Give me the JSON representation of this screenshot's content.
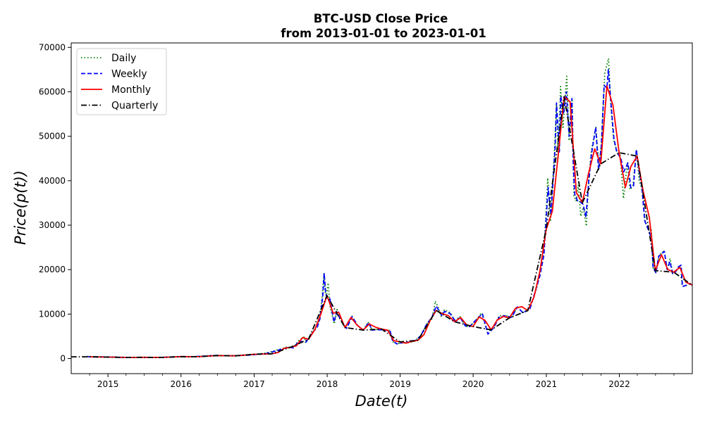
{
  "chart_data": {
    "type": "line",
    "title_line1": "BTC-USD Close Price",
    "title_line2": "from 2013-01-01 to 2023-01-01",
    "xlabel": "Date(t)",
    "ylabel": "Price(p(t))",
    "x_axis": {
      "type": "date",
      "xlim": [
        "2014-07-01",
        "2023-01-01"
      ],
      "ticks": [
        {
          "date": "2015-01-01",
          "label": "2015"
        },
        {
          "date": "2016-01-01",
          "label": "2016"
        },
        {
          "date": "2017-01-01",
          "label": "2017"
        },
        {
          "date": "2018-01-01",
          "label": "2018"
        },
        {
          "date": "2019-01-01",
          "label": "2019"
        },
        {
          "date": "2020-01-01",
          "label": "2020"
        },
        {
          "date": "2021-01-01",
          "label": "2021"
        },
        {
          "date": "2022-01-01",
          "label": "2022"
        }
      ]
    },
    "y_axis": {
      "ylim": [
        -3400,
        71000
      ],
      "ticks": [
        0,
        10000,
        20000,
        30000,
        40000,
        50000,
        60000,
        70000
      ],
      "tick_labels": [
        "0",
        "10000",
        "20000",
        "30000",
        "40000",
        "50000",
        "60000",
        "70000"
      ]
    },
    "grid": false,
    "legend_position": "top-left",
    "series": [
      {
        "name": "Daily",
        "color": "#008000",
        "dash": "dotted",
        "x": [
          "2014-09-17",
          "2014-12-01",
          "2015-03-01",
          "2015-06-01",
          "2015-09-01",
          "2015-12-01",
          "2016-03-01",
          "2016-06-15",
          "2016-09-01",
          "2016-12-01",
          "2017-03-01",
          "2017-05-25",
          "2017-06-15",
          "2017-07-15",
          "2017-08-15",
          "2017-09-10",
          "2017-09-15",
          "2017-10-15",
          "2017-11-10",
          "2017-11-25",
          "2017-12-06",
          "2017-12-17",
          "2017-12-22",
          "2017-12-28",
          "2018-01-06",
          "2018-01-16",
          "2018-02-06",
          "2018-02-20",
          "2018-03-05",
          "2018-03-15",
          "2018-04-05",
          "2018-05-05",
          "2018-06-01",
          "2018-07-01",
          "2018-07-25",
          "2018-08-15",
          "2018-09-15",
          "2018-10-15",
          "2018-11-10",
          "2018-11-25",
          "2018-12-15",
          "2019-01-15",
          "2019-02-15",
          "2019-03-15",
          "2019-04-15",
          "2019-05-15",
          "2019-06-10",
          "2019-06-26",
          "2019-07-10",
          "2019-07-25",
          "2019-08-10",
          "2019-09-10",
          "2019-10-01",
          "2019-10-26",
          "2019-11-25",
          "2019-12-15",
          "2020-01-15",
          "2020-02-12",
          "2020-03-12",
          "2020-03-20",
          "2020-04-10",
          "2020-05-10",
          "2020-06-10",
          "2020-07-10",
          "2020-08-10",
          "2020-09-05",
          "2020-10-10",
          "2020-11-10",
          "2020-12-01",
          "2020-12-20",
          "2021-01-08",
          "2021-01-22",
          "2021-02-10",
          "2021-02-21",
          "2021-03-01",
          "2021-03-13",
          "2021-03-25",
          "2021-04-13",
          "2021-04-25",
          "2021-05-10",
          "2021-05-19",
          "2021-05-30",
          "2021-06-10",
          "2021-06-22",
          "2021-07-05",
          "2021-07-20",
          "2021-08-01",
          "2021-08-14",
          "2021-09-06",
          "2021-09-21",
          "2021-10-05",
          "2021-10-20",
          "2021-11-08",
          "2021-11-20",
          "2021-12-04",
          "2021-12-20",
          "2022-01-05",
          "2022-01-22",
          "2022-02-10",
          "2022-02-24",
          "2022-03-10",
          "2022-03-28",
          "2022-04-10",
          "2022-04-25",
          "2022-05-10",
          "2022-05-25",
          "2022-06-10",
          "2022-06-18",
          "2022-07-01",
          "2022-07-20",
          "2022-08-14",
          "2022-08-28",
          "2022-09-12",
          "2022-09-25",
          "2022-10-10",
          "2022-10-25",
          "2022-11-05",
          "2022-11-10",
          "2022-11-25",
          "2022-12-15",
          "2022-12-31"
        ],
        "values": [
          460,
          380,
          260,
          240,
          230,
          380,
          410,
          700,
          610,
          750,
          1200,
          2300,
          2600,
          2500,
          4200,
          4900,
          3500,
          5500,
          7300,
          9000,
          13500,
          19300,
          15000,
          14000,
          17000,
          11500,
          7800,
          11000,
          9500,
          8400,
          6800,
          9500,
          7500,
          6300,
          8200,
          6400,
          6600,
          6400,
          6300,
          3800,
          3300,
          3600,
          3600,
          3900,
          5200,
          7800,
          9000,
          12900,
          11500,
          9500,
          11000,
          10300,
          8300,
          9500,
          7200,
          7200,
          8600,
          10300,
          5900,
          6200,
          6900,
          9600,
          9700,
          9200,
          11700,
          10200,
          11300,
          15300,
          19000,
          23500,
          40600,
          30800,
          46000,
          57000,
          45000,
          61200,
          52000,
          63500,
          49000,
          58000,
          36500,
          35500,
          39000,
          32000,
          34000,
          29800,
          40000,
          46800,
          52000,
          42800,
          49000,
          64200,
          67500,
          56500,
          49000,
          46700,
          45900,
          36000,
          44000,
          38000,
          39000,
          47000,
          40000,
          38000,
          31000,
          29200,
          29000,
          20500,
          19300,
          23300,
          24300,
          20000,
          22500,
          19000,
          19500,
          20600,
          21000,
          16500,
          16200,
          16800,
          16550
        ]
      },
      {
        "name": "Weekly",
        "color": "#0000ff",
        "dash": "dashed",
        "x": [
          "2014-09-21",
          "2014-12-07",
          "2015-03-08",
          "2015-06-07",
          "2015-09-06",
          "2015-12-06",
          "2016-03-06",
          "2016-06-19",
          "2016-09-04",
          "2016-12-04",
          "2017-03-05",
          "2017-05-28",
          "2017-06-18",
          "2017-07-16",
          "2017-08-13",
          "2017-09-17",
          "2017-10-15",
          "2017-11-12",
          "2017-11-26",
          "2017-12-10",
          "2017-12-17",
          "2017-12-24",
          "2017-12-31",
          "2018-01-14",
          "2018-02-04",
          "2018-02-18",
          "2018-03-04",
          "2018-03-18",
          "2018-04-08",
          "2018-05-06",
          "2018-06-03",
          "2018-07-01",
          "2018-07-29",
          "2018-08-12",
          "2018-09-16",
          "2018-10-14",
          "2018-11-11",
          "2018-11-25",
          "2018-12-16",
          "2019-01-13",
          "2019-02-17",
          "2019-03-17",
          "2019-04-14",
          "2019-05-12",
          "2019-06-09",
          "2019-06-30",
          "2019-07-14",
          "2019-07-28",
          "2019-08-11",
          "2019-09-08",
          "2019-10-06",
          "2019-10-27",
          "2019-11-24",
          "2019-12-15",
          "2020-01-12",
          "2020-02-16",
          "2020-03-15",
          "2020-04-12",
          "2020-05-10",
          "2020-06-07",
          "2020-07-12",
          "2020-08-09",
          "2020-09-06",
          "2020-10-11",
          "2020-11-08",
          "2020-11-29",
          "2020-12-20",
          "2021-01-10",
          "2021-01-24",
          "2021-02-14",
          "2021-02-21",
          "2021-03-07",
          "2021-03-14",
          "2021-03-28",
          "2021-04-11",
          "2021-04-25",
          "2021-05-09",
          "2021-05-16",
          "2021-05-23",
          "2021-06-06",
          "2021-06-20",
          "2021-07-04",
          "2021-07-18",
          "2021-08-01",
          "2021-08-15",
          "2021-09-05",
          "2021-09-19",
          "2021-10-03",
          "2021-10-17",
          "2021-10-31",
          "2021-11-07",
          "2021-11-21",
          "2021-12-05",
          "2021-12-19",
          "2022-01-09",
          "2022-01-23",
          "2022-02-13",
          "2022-02-27",
          "2022-03-13",
          "2022-03-27",
          "2022-04-10",
          "2022-04-24",
          "2022-05-08",
          "2022-05-22",
          "2022-06-12",
          "2022-06-19",
          "2022-07-03",
          "2022-07-17",
          "2022-08-14",
          "2022-08-28",
          "2022-09-11",
          "2022-09-25",
          "2022-10-09",
          "2022-10-23",
          "2022-11-06",
          "2022-11-13",
          "2022-11-27",
          "2022-12-18",
          "2022-12-31"
        ],
        "values": [
          420,
          370,
          270,
          240,
          235,
          390,
          420,
          680,
          610,
          760,
          1150,
          2200,
          2550,
          2400,
          3900,
          3700,
          5600,
          7000,
          9000,
          14000,
          19200,
          15000,
          13700,
          13500,
          8200,
          10500,
          9200,
          8200,
          6800,
          9400,
          7400,
          6400,
          8100,
          6400,
          6500,
          6400,
          6300,
          3900,
          3300,
          3550,
          3700,
          4000,
          5100,
          7600,
          9300,
          11800,
          10800,
          9700,
          10600,
          10100,
          8300,
          9300,
          7300,
          7200,
          8500,
          10100,
          5500,
          6900,
          9300,
          9600,
          9300,
          11600,
          10300,
          11200,
          15300,
          18500,
          23300,
          38500,
          32400,
          47500,
          57500,
          46500,
          59000,
          55000,
          60000,
          50000,
          58500,
          43500,
          37000,
          35500,
          35200,
          34700,
          31800,
          39800,
          46000,
          52000,
          42500,
          47700,
          61500,
          60800,
          65000,
          57000,
          49500,
          46500,
          45000,
          42000,
          44000,
          38500,
          38800,
          47000,
          42000,
          38500,
          31000,
          29400,
          27000,
          20500,
          19300,
          23000,
          24100,
          20000,
          21800,
          19100,
          19500,
          20600,
          21000,
          16200,
          16400,
          16800,
          16550
        ]
      },
      {
        "name": "Monthly",
        "color": "#ff0000",
        "dash": "solid",
        "x": [
          "2014-09-30",
          "2014-12-31",
          "2015-03-31",
          "2015-06-30",
          "2015-09-30",
          "2015-12-31",
          "2016-03-31",
          "2016-06-30",
          "2016-09-30",
          "2016-12-31",
          "2017-03-31",
          "2017-04-30",
          "2017-05-31",
          "2017-06-30",
          "2017-07-31",
          "2017-08-31",
          "2017-09-30",
          "2017-10-31",
          "2017-11-30",
          "2017-12-31",
          "2018-01-31",
          "2018-02-28",
          "2018-03-31",
          "2018-04-30",
          "2018-05-31",
          "2018-06-30",
          "2018-07-31",
          "2018-08-31",
          "2018-09-30",
          "2018-10-31",
          "2018-11-30",
          "2018-12-31",
          "2019-01-31",
          "2019-02-28",
          "2019-03-31",
          "2019-04-30",
          "2019-05-31",
          "2019-06-30",
          "2019-07-31",
          "2019-08-31",
          "2019-09-30",
          "2019-10-31",
          "2019-11-30",
          "2019-12-31",
          "2020-01-31",
          "2020-02-29",
          "2020-03-31",
          "2020-04-30",
          "2020-05-31",
          "2020-06-30",
          "2020-07-31",
          "2020-08-31",
          "2020-09-30",
          "2020-10-31",
          "2020-11-30",
          "2020-12-31",
          "2021-01-31",
          "2021-02-28",
          "2021-03-31",
          "2021-04-30",
          "2021-05-31",
          "2021-06-30",
          "2021-07-31",
          "2021-08-31",
          "2021-09-30",
          "2021-10-31",
          "2021-11-30",
          "2021-12-31",
          "2022-01-31",
          "2022-02-28",
          "2022-03-31",
          "2022-04-30",
          "2022-05-31",
          "2022-06-30",
          "2022-07-31",
          "2022-08-31",
          "2022-09-30",
          "2022-10-31",
          "2022-11-30",
          "2022-12-31"
        ],
        "values": [
          390,
          320,
          245,
          265,
          236,
          430,
          416,
          670,
          610,
          960,
          1070,
          1350,
          2300,
          2500,
          2870,
          4700,
          4340,
          6450,
          9950,
          14160,
          10220,
          10400,
          6970,
          9240,
          7490,
          6400,
          7780,
          7040,
          6630,
          6370,
          4020,
          3740,
          3460,
          3850,
          4100,
          5350,
          8570,
          10820,
          10080,
          9630,
          8290,
          9200,
          7570,
          7190,
          9350,
          8600,
          6440,
          8660,
          9460,
          9140,
          11320,
          11680,
          10780,
          13800,
          19700,
          28990,
          33110,
          45240,
          58920,
          57750,
          37330,
          35040,
          41630,
          47170,
          43790,
          61320,
          57010,
          46300,
          38480,
          43190,
          45540,
          37710,
          31790,
          19780,
          23340,
          20050,
          19430,
          20500,
          17170,
          16550
        ]
      },
      {
        "name": "Quarterly",
        "color": "#000000",
        "dash": "dashdot",
        "x": [
          "2014-06-30",
          "2014-09-30",
          "2014-12-31",
          "2015-03-31",
          "2015-06-30",
          "2015-09-30",
          "2015-12-31",
          "2016-03-31",
          "2016-06-30",
          "2016-09-30",
          "2016-12-31",
          "2017-03-31",
          "2017-06-30",
          "2017-09-30",
          "2017-12-31",
          "2018-03-31",
          "2018-06-30",
          "2018-09-30",
          "2018-12-31",
          "2019-03-31",
          "2019-06-30",
          "2019-09-30",
          "2019-12-31",
          "2020-03-31",
          "2020-06-30",
          "2020-09-30",
          "2020-12-31",
          "2021-03-31",
          "2021-06-30",
          "2021-09-30",
          "2021-12-31",
          "2022-03-31",
          "2022-06-30",
          "2022-09-30",
          "2022-12-31"
        ],
        "values": [
          390,
          390,
          320,
          245,
          265,
          236,
          430,
          416,
          670,
          610,
          960,
          1070,
          2500,
          4340,
          14160,
          6970,
          6400,
          6630,
          3740,
          4100,
          10820,
          8290,
          7190,
          6440,
          9140,
          10780,
          28990,
          58920,
          35040,
          43790,
          46300,
          45540,
          19780,
          19430,
          16550
        ]
      }
    ]
  }
}
